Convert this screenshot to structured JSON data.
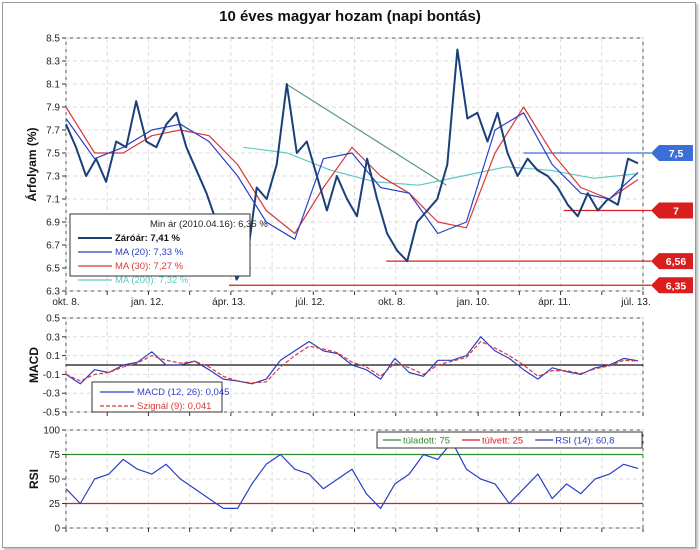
{
  "chart_data": [
    {
      "type": "line",
      "title": "10 éves magyar hozam (napi bontás)",
      "ylabel": "Árfolyam (%)",
      "ylim": [
        6.3,
        8.5
      ],
      "yticks": [
        "8.5",
        "8.3",
        "8.1",
        "7.9",
        "7.7",
        "7.5",
        "7.3",
        "7.1",
        "6.9",
        "6.7",
        "6.5",
        "6.3"
      ],
      "xticks": [
        "okt. 8.",
        "jan. 12.",
        "ápr. 13.",
        "júl. 12.",
        "okt. 8.",
        "jan. 10.",
        "ápr. 11.",
        "júl. 13."
      ],
      "grid": true,
      "legend_position": "bottom-left",
      "legend_note": "Min ár (2010.04.16): 6,35 %",
      "series": [
        {
          "name": "Záróár: 7,41 %",
          "color": "#1a3f7a",
          "values": [
            7.75,
            7.55,
            7.3,
            7.45,
            7.25,
            7.6,
            7.55,
            7.95,
            7.6,
            7.55,
            7.75,
            7.85,
            7.55,
            7.35,
            7.15,
            6.9,
            6.7,
            6.4,
            6.55,
            7.2,
            7.1,
            7.4,
            8.1,
            7.5,
            7.6,
            7.3,
            7.0,
            7.3,
            7.1,
            6.95,
            7.45,
            7.1,
            6.8,
            6.65,
            6.56,
            6.9,
            7.0,
            7.1,
            7.4,
            8.4,
            7.8,
            7.85,
            7.6,
            7.85,
            7.5,
            7.3,
            7.45,
            7.35,
            7.3,
            7.2,
            7.05,
            6.95,
            7.15,
            7.0,
            7.1,
            7.05,
            7.45,
            7.41
          ]
        },
        {
          "name": "MA (20): 7,33 %",
          "color": "#2b3fc4",
          "values": [
            7.8,
            7.45,
            7.55,
            7.7,
            7.75,
            7.6,
            7.3,
            6.9,
            6.75,
            7.45,
            7.5,
            7.2,
            7.15,
            6.8,
            6.9,
            7.7,
            7.85,
            7.4,
            7.15,
            7.1,
            7.33
          ]
        },
        {
          "name": "MA (30): 7,27 %",
          "color": "#d63a3a",
          "values": [
            7.9,
            7.5,
            7.5,
            7.65,
            7.7,
            7.65,
            7.4,
            7.0,
            6.8,
            7.2,
            7.55,
            7.3,
            7.15,
            6.9,
            6.85,
            7.5,
            7.9,
            7.5,
            7.2,
            7.1,
            7.27
          ]
        },
        {
          "name": "MA (200): 7,32 %",
          "color": "#5fc9c0",
          "start_fraction": 0.31,
          "values": [
            7.55,
            7.5,
            7.35,
            7.25,
            7.22,
            7.3,
            7.38,
            7.35,
            7.28,
            7.32
          ]
        }
      ],
      "trendline": {
        "color": "#5a9a80",
        "points": [
          [
            0.385,
            8.1
          ],
          [
            0.665,
            7.22
          ]
        ]
      },
      "levels": [
        {
          "value": 7.5,
          "label": "7,5",
          "color": "#3a6fd8",
          "from": 0.8
        },
        {
          "value": 7.0,
          "label": "7",
          "color": "#d81e1e",
          "from": 0.87
        },
        {
          "value": 6.56,
          "label": "6,56",
          "color": "#d81e1e",
          "from": 0.56
        },
        {
          "value": 6.35,
          "label": "6,35",
          "color": "#d81e1e",
          "from": 0.285
        }
      ]
    },
    {
      "type": "line",
      "ylabel": "MACD",
      "ylim": [
        -0.5,
        0.5
      ],
      "yticks": [
        "0.5",
        "0.3",
        "0.1",
        "-0.1",
        "-0.3",
        "-0.5"
      ],
      "legend_position": "bottom-left",
      "series": [
        {
          "name": "MACD (12, 26): 0,045",
          "color": "#2b3fc4",
          "dash": false,
          "values": [
            -0.1,
            -0.2,
            -0.05,
            -0.08,
            0.0,
            0.03,
            0.14,
            0.0,
            0.0,
            0.04,
            -0.05,
            -0.15,
            -0.17,
            -0.2,
            -0.15,
            0.05,
            0.15,
            0.25,
            0.15,
            0.12,
            0.0,
            -0.05,
            -0.15,
            0.07,
            -0.08,
            -0.12,
            0.05,
            0.05,
            0.1,
            0.3,
            0.15,
            0.07,
            -0.05,
            -0.15,
            -0.03,
            -0.07,
            -0.1,
            -0.03,
            0.0,
            0.07,
            0.045
          ]
        },
        {
          "name": "Szignál (9): 0,041",
          "color": "#d63a3a",
          "dash": true,
          "values": [
            -0.1,
            -0.17,
            -0.1,
            -0.08,
            -0.02,
            0.02,
            0.1,
            0.05,
            0.02,
            0.04,
            -0.02,
            -0.12,
            -0.17,
            -0.19,
            -0.18,
            -0.02,
            0.1,
            0.2,
            0.17,
            0.13,
            0.03,
            -0.02,
            -0.12,
            0.02,
            -0.03,
            -0.1,
            0.0,
            0.04,
            0.08,
            0.25,
            0.18,
            0.1,
            0.0,
            -0.12,
            -0.06,
            -0.06,
            -0.09,
            -0.04,
            -0.01,
            0.05,
            0.041
          ]
        }
      ]
    },
    {
      "type": "line",
      "ylabel": "RSI",
      "ylim": [
        0,
        100
      ],
      "yticks": [
        "100",
        "75",
        "50",
        "25",
        "0"
      ],
      "legend_position": "top-right",
      "series": [
        {
          "name": "túladott: 75",
          "color": "#2e8b2e",
          "constant": 75
        },
        {
          "name": "túlvett: 25",
          "color": "#d81e1e",
          "constant": 25
        },
        {
          "name": "RSI (14): 60,8",
          "color": "#2b3fc4",
          "values": [
            40,
            25,
            50,
            55,
            70,
            60,
            55,
            65,
            50,
            40,
            30,
            20,
            20,
            45,
            65,
            75,
            60,
            55,
            40,
            50,
            60,
            35,
            20,
            45,
            55,
            75,
            70,
            88,
            60,
            50,
            45,
            25,
            40,
            55,
            30,
            45,
            35,
            50,
            55,
            65,
            60.8
          ]
        }
      ]
    }
  ]
}
